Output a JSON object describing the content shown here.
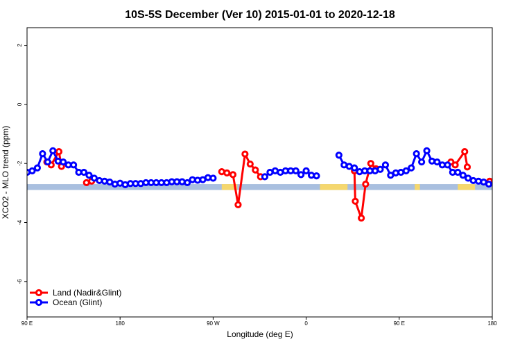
{
  "chart_data": {
    "type": "line",
    "title": "10S-5S December (Ver 10)   2015-01-01 to 2020-12-18",
    "xlabel": "Longitude (deg E)",
    "ylabel": "XCO2 - MLO trend (ppm)",
    "xlim": [
      -90,
      180
    ],
    "ylim": [
      -7.2,
      2.6
    ],
    "x_ticks": [
      {
        "value": -90,
        "label": "90 E"
      },
      {
        "value": -36,
        "label": "180"
      },
      {
        "value": 18,
        "label": "90 W"
      },
      {
        "value": 72,
        "label": "0"
      },
      {
        "value": 126,
        "label": "90 E"
      },
      {
        "value": 180,
        "label": "180"
      }
    ],
    "y_ticks": [
      -6,
      -4,
      -2,
      0,
      2
    ],
    "legend_position": "bottom-left",
    "colors": {
      "land": "#ff0000",
      "ocean": "#0000ff",
      "land_band": "#f5d76e",
      "ocean_band": "#a9bfdf"
    },
    "land_bands": [
      [
        23,
        32
      ],
      [
        80,
        96
      ],
      [
        135,
        138
      ],
      [
        160,
        170
      ]
    ],
    "band_y": [
      -2.7,
      -2.9
    ],
    "series": [
      {
        "name": "Land (Nadir&Glint)",
        "color": "#ff0000",
        "points": [
          [
            -78.5,
            -1.95
          ],
          [
            -76,
            -2.05
          ],
          [
            -71.5,
            -1.6
          ],
          [
            -70,
            -2.1
          ],
          [
            -55.5,
            -2.65
          ],
          [
            -52.5,
            -2.6
          ],
          [
            23,
            -2.28
          ],
          [
            26,
            -2.32
          ],
          [
            29.5,
            -2.38
          ],
          [
            32.5,
            -3.4
          ],
          [
            36.5,
            -1.68
          ],
          [
            39.5,
            -2.02
          ],
          [
            42.5,
            -2.22
          ],
          [
            45.5,
            -2.45
          ],
          [
            100,
            -2.25
          ],
          [
            100.5,
            -3.28
          ],
          [
            104,
            -3.85
          ],
          [
            106.5,
            -2.7
          ],
          [
            109.5,
            -2.0
          ],
          [
            112.5,
            -2.18
          ],
          [
            156,
            -1.95
          ],
          [
            158.5,
            -2.05
          ],
          [
            164,
            -1.6
          ],
          [
            165.5,
            -2.12
          ],
          [
            178.5,
            -2.6
          ],
          [
            181,
            -2.62
          ]
        ]
      },
      {
        "name": "Ocean (Glint)",
        "color": "#0000ff",
        "points": [
          [
            -90,
            -2.3
          ],
          [
            -87,
            -2.25
          ],
          [
            -84,
            -2.15
          ],
          [
            -81,
            -1.67
          ],
          [
            -78,
            -1.95
          ],
          [
            -75,
            -1.57
          ],
          [
            -72,
            -1.92
          ],
          [
            -69,
            -1.95
          ],
          [
            -66,
            -2.05
          ],
          [
            -63,
            -2.05
          ],
          [
            -60,
            -2.3
          ],
          [
            -57,
            -2.3
          ],
          [
            -54,
            -2.4
          ],
          [
            -51,
            -2.5
          ],
          [
            -48,
            -2.58
          ],
          [
            -45,
            -2.6
          ],
          [
            -42,
            -2.63
          ],
          [
            -39,
            -2.7
          ],
          [
            -36,
            -2.67
          ],
          [
            -33,
            -2.72
          ],
          [
            -30,
            -2.68
          ],
          [
            -27,
            -2.68
          ],
          [
            -24,
            -2.68
          ],
          [
            -21,
            -2.65
          ],
          [
            -18,
            -2.65
          ],
          [
            -15,
            -2.65
          ],
          [
            -12,
            -2.65
          ],
          [
            -9,
            -2.65
          ],
          [
            -6,
            -2.62
          ],
          [
            -3,
            -2.62
          ],
          [
            0,
            -2.62
          ],
          [
            3,
            -2.65
          ],
          [
            6,
            -2.55
          ],
          [
            9,
            -2.57
          ],
          [
            12,
            -2.55
          ],
          [
            15,
            -2.48
          ],
          [
            18,
            -2.5
          ],
          [
            48,
            -2.45
          ],
          [
            51,
            -2.3
          ],
          [
            54,
            -2.25
          ],
          [
            57,
            -2.3
          ],
          [
            60,
            -2.25
          ],
          [
            63,
            -2.25
          ],
          [
            66,
            -2.25
          ],
          [
            69,
            -2.38
          ],
          [
            72,
            -2.25
          ],
          [
            75,
            -2.4
          ],
          [
            78,
            -2.42
          ],
          [
            91,
            -1.72
          ],
          [
            94,
            -2.05
          ],
          [
            97,
            -2.1
          ],
          [
            100,
            -2.15
          ],
          [
            103,
            -2.28
          ],
          [
            106,
            -2.25
          ],
          [
            109,
            -2.25
          ],
          [
            112,
            -2.25
          ],
          [
            115,
            -2.2
          ],
          [
            118,
            -2.05
          ],
          [
            121,
            -2.4
          ],
          [
            124,
            -2.32
          ],
          [
            127,
            -2.3
          ],
          [
            130,
            -2.25
          ],
          [
            133,
            -2.15
          ],
          [
            136,
            -1.67
          ],
          [
            139,
            -1.95
          ],
          [
            142,
            -1.57
          ],
          [
            145,
            -1.92
          ],
          [
            148,
            -1.95
          ],
          [
            151,
            -2.05
          ],
          [
            154,
            -2.05
          ],
          [
            157,
            -2.3
          ],
          [
            160,
            -2.3
          ],
          [
            163,
            -2.4
          ],
          [
            166,
            -2.5
          ],
          [
            169,
            -2.58
          ],
          [
            172,
            -2.6
          ],
          [
            175,
            -2.63
          ],
          [
            178,
            -2.7
          ]
        ]
      }
    ]
  }
}
